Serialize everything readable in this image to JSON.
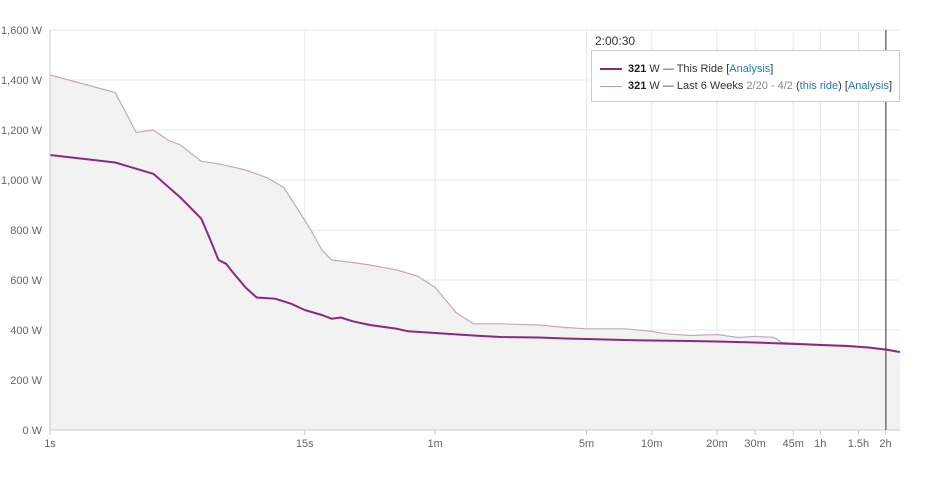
{
  "colors": {
    "ride_line": "#8b2a7c",
    "history_line": "#c4a9bf",
    "history_fill": "#f2f2f2",
    "grid": "#e8e8e8",
    "axis": "#cccccc",
    "cursor": "#333333",
    "link": "#2a7ab0"
  },
  "cursor": {
    "time_label": "2:00:30",
    "x_seconds": 7230
  },
  "legend": {
    "ride": {
      "value": "321",
      "unit_text": " W — This Ride ",
      "link_open": "[",
      "link_text": "Analysis",
      "link_close": "]"
    },
    "history": {
      "value": "321",
      "unit_text": " W — Last 6 Weeks ",
      "date_range": "2/20 - 4/2",
      "paren_open": " (",
      "this_ride_text": "this ride",
      "paren_close": ") ",
      "link_open": "[",
      "link_text": "Analysis",
      "link_close": "]"
    }
  },
  "chart_data": {
    "type": "line",
    "title": "",
    "xlabel": "",
    "ylabel": "",
    "x_scale": "log",
    "xlim": [
      1,
      8400
    ],
    "ylim": [
      0,
      1600
    ],
    "grid": true,
    "legend_placement": "top-right",
    "x_ticks": [
      {
        "label": "1s",
        "seconds": 1
      },
      {
        "label": "15s",
        "seconds": 15
      },
      {
        "label": "1m",
        "seconds": 60
      },
      {
        "label": "5m",
        "seconds": 300
      },
      {
        "label": "10m",
        "seconds": 600
      },
      {
        "label": "20m",
        "seconds": 1200
      },
      {
        "label": "30m",
        "seconds": 1800
      },
      {
        "label": "45m",
        "seconds": 2700
      },
      {
        "label": "1h",
        "seconds": 3600
      },
      {
        "label": "1.5h",
        "seconds": 5400
      },
      {
        "label": "2h",
        "seconds": 7200
      }
    ],
    "y_ticks": [
      {
        "label": "0 W",
        "value": 0
      },
      {
        "label": "200 W",
        "value": 200
      },
      {
        "label": "400 W",
        "value": 400
      },
      {
        "label": "600 W",
        "value": 600
      },
      {
        "label": "800 W",
        "value": 800
      },
      {
        "label": "1,000 W",
        "value": 1000
      },
      {
        "label": "1,200 W",
        "value": 1200
      },
      {
        "label": "1,400 W",
        "value": 1400
      },
      {
        "label": "1,600 W",
        "value": 1600
      }
    ],
    "series": [
      {
        "name": "This Ride",
        "points": [
          [
            1,
            1100
          ],
          [
            2,
            1070
          ],
          [
            3,
            1025
          ],
          [
            4,
            930
          ],
          [
            5,
            845
          ],
          [
            5.5,
            760
          ],
          [
            6,
            680
          ],
          [
            6.5,
            665
          ],
          [
            7,
            630
          ],
          [
            8,
            570
          ],
          [
            9,
            530
          ],
          [
            11,
            525
          ],
          [
            13,
            505
          ],
          [
            15,
            480
          ],
          [
            18,
            460
          ],
          [
            20,
            445
          ],
          [
            22,
            450
          ],
          [
            25,
            435
          ],
          [
            30,
            420
          ],
          [
            40,
            405
          ],
          [
            45,
            395
          ],
          [
            60,
            388
          ],
          [
            90,
            378
          ],
          [
            120,
            372
          ],
          [
            180,
            370
          ],
          [
            240,
            366
          ],
          [
            300,
            364
          ],
          [
            450,
            360
          ],
          [
            600,
            358
          ],
          [
            900,
            356
          ],
          [
            1200,
            354
          ],
          [
            1800,
            350
          ],
          [
            2400,
            346
          ],
          [
            3000,
            343
          ],
          [
            3600,
            340
          ],
          [
            4800,
            336
          ],
          [
            6000,
            330
          ],
          [
            7200,
            322
          ],
          [
            8400,
            312
          ]
        ]
      },
      {
        "name": "Last 6 Weeks",
        "points": [
          [
            1,
            1420
          ],
          [
            2,
            1350
          ],
          [
            2.5,
            1190
          ],
          [
            3,
            1200
          ],
          [
            3.5,
            1160
          ],
          [
            4,
            1140
          ],
          [
            5,
            1075
          ],
          [
            6,
            1065
          ],
          [
            8,
            1040
          ],
          [
            10,
            1010
          ],
          [
            12,
            970
          ],
          [
            14,
            880
          ],
          [
            16,
            800
          ],
          [
            18,
            720
          ],
          [
            20,
            680
          ],
          [
            25,
            670
          ],
          [
            30,
            660
          ],
          [
            40,
            640
          ],
          [
            50,
            615
          ],
          [
            60,
            570
          ],
          [
            75,
            470
          ],
          [
            90,
            425
          ],
          [
            120,
            425
          ],
          [
            180,
            420
          ],
          [
            240,
            410
          ],
          [
            300,
            405
          ],
          [
            450,
            405
          ],
          [
            600,
            395
          ],
          [
            700,
            385
          ],
          [
            900,
            378
          ],
          [
            1200,
            382
          ],
          [
            1500,
            370
          ],
          [
            1800,
            375
          ],
          [
            2200,
            370
          ],
          [
            2400,
            350
          ],
          [
            3600,
            342
          ],
          [
            4800,
            338
          ],
          [
            6000,
            332
          ],
          [
            7200,
            322
          ],
          [
            8400,
            312
          ]
        ]
      }
    ]
  }
}
